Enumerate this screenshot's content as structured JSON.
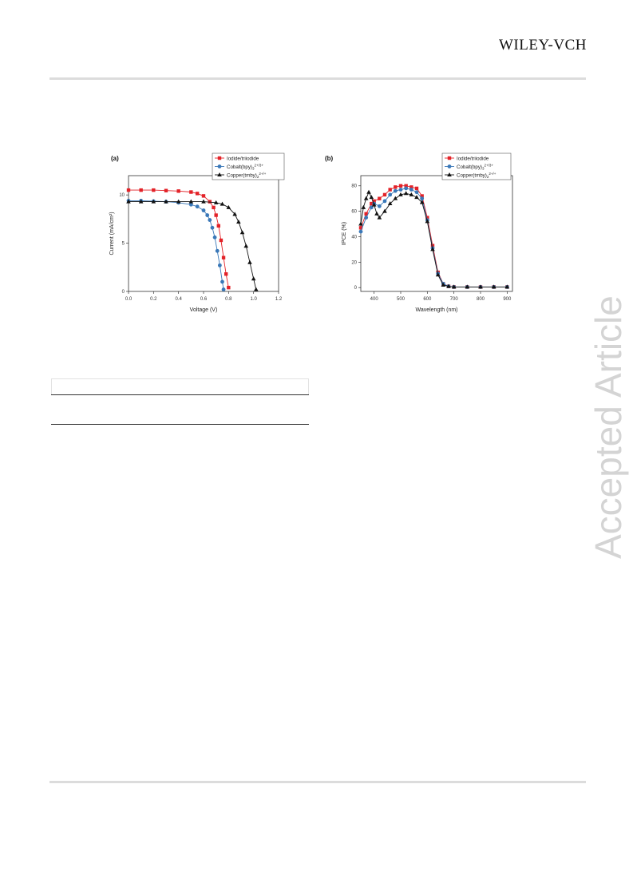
{
  "header": {
    "publisher": "WILEY-VCH"
  },
  "watermark": "Accepted Article",
  "chart_data": [
    {
      "type": "line",
      "panel_label": "(a)",
      "xlabel": "Voltage (V)",
      "ylabel": "Current (mA/cm²)",
      "xlim": [
        0,
        1.2
      ],
      "ylim": [
        0,
        12
      ],
      "xticks": [
        "0.0",
        "0.2",
        "0.4",
        "0.6",
        "0.8",
        "1.0",
        "1.2"
      ],
      "yticks": [
        "0",
        "5",
        "10"
      ],
      "legend_position": "top-right",
      "series": [
        {
          "name": "Iodide/triiodide",
          "color": "#e32228",
          "marker": "square",
          "x": [
            0,
            0.1,
            0.2,
            0.3,
            0.4,
            0.5,
            0.55,
            0.6,
            0.65,
            0.68,
            0.7,
            0.72,
            0.74,
            0.76,
            0.78,
            0.8
          ],
          "y": [
            10.5,
            10.5,
            10.5,
            10.45,
            10.4,
            10.3,
            10.15,
            9.9,
            9.3,
            8.7,
            7.9,
            6.8,
            5.3,
            3.5,
            1.8,
            0.4
          ]
        },
        {
          "name": "Cobalt(bpy)3 2+/3+",
          "color": "#3a78b8",
          "marker": "circle",
          "x": [
            0,
            0.1,
            0.2,
            0.3,
            0.4,
            0.5,
            0.55,
            0.6,
            0.63,
            0.65,
            0.67,
            0.69,
            0.71,
            0.73,
            0.75,
            0.76
          ],
          "y": [
            9.4,
            9.4,
            9.35,
            9.3,
            9.2,
            9.0,
            8.8,
            8.4,
            7.9,
            7.4,
            6.6,
            5.6,
            4.2,
            2.7,
            1.0,
            0.2
          ]
        },
        {
          "name": "Copper(tmby)2 2+/+",
          "color": "#111111",
          "marker": "triangle",
          "x": [
            0,
            0.1,
            0.2,
            0.3,
            0.4,
            0.5,
            0.6,
            0.7,
            0.75,
            0.8,
            0.85,
            0.88,
            0.91,
            0.94,
            0.97,
            1.0,
            1.02
          ],
          "y": [
            9.3,
            9.3,
            9.3,
            9.3,
            9.3,
            9.3,
            9.3,
            9.2,
            9.05,
            8.7,
            8.0,
            7.2,
            6.1,
            4.7,
            3.0,
            1.3,
            0.2
          ]
        }
      ],
      "legend_labels": [
        {
          "base": "Iodide/triiodide",
          "sub": "",
          "sup": ""
        },
        {
          "base": "Cobalt(bpy)",
          "sub": "3",
          "sup": "2+/3+"
        },
        {
          "base": "Copper(tmby)",
          "sub": "2",
          "sup": "2+/+"
        }
      ]
    },
    {
      "type": "line",
      "panel_label": "(b)",
      "xlabel": "Wavelength (nm)",
      "ylabel": "IPCE (%)",
      "xlim": [
        350,
        920
      ],
      "ylim": [
        -3,
        88
      ],
      "xticks": [
        "400",
        "500",
        "600",
        "700",
        "800",
        "900"
      ],
      "yticks": [
        "0",
        "20",
        "40",
        "60",
        "80"
      ],
      "legend_position": "top-right",
      "series": [
        {
          "name": "Iodide/triiodide",
          "color": "#e32228",
          "marker": "square",
          "x": [
            350,
            370,
            390,
            400,
            420,
            440,
            460,
            480,
            500,
            520,
            540,
            560,
            580,
            600,
            620,
            640,
            660,
            680,
            700,
            750,
            800,
            850,
            900
          ],
          "y": [
            47,
            58,
            66,
            68,
            70,
            73,
            77,
            79,
            80,
            80,
            79,
            78,
            72,
            55,
            33,
            12,
            3,
            1,
            0.5,
            0.5,
            0.5,
            0.5,
            0.5
          ]
        },
        {
          "name": "Cobalt(bpy)3 2+/3+",
          "color": "#3a78b8",
          "marker": "circle",
          "x": [
            350,
            370,
            390,
            400,
            420,
            440,
            460,
            480,
            500,
            520,
            540,
            560,
            580,
            600,
            620,
            640,
            660,
            680,
            700,
            750,
            800,
            850,
            900
          ],
          "y": [
            44,
            55,
            63,
            66,
            64,
            68,
            73,
            76,
            77,
            78,
            77,
            75,
            70,
            53,
            31,
            11,
            3,
            1,
            0.5,
            0.5,
            0.5,
            0.5,
            0.5
          ]
        },
        {
          "name": "Copper(tmby)2 2+/+",
          "color": "#111111",
          "marker": "triangle",
          "x": [
            350,
            360,
            370,
            380,
            390,
            400,
            410,
            420,
            440,
            460,
            480,
            500,
            520,
            540,
            560,
            580,
            600,
            620,
            640,
            660,
            680,
            700,
            750,
            800,
            850,
            900
          ],
          "y": [
            50,
            63,
            70,
            75,
            71,
            65,
            58,
            55,
            60,
            66,
            70,
            73,
            74,
            73,
            71,
            67,
            52,
            30,
            10,
            2,
            1,
            0.5,
            0.5,
            0.5,
            0.5,
            0.5
          ]
        }
      ],
      "legend_labels": [
        {
          "base": "Iodide/triiodide",
          "sub": "",
          "sup": ""
        },
        {
          "base": "Cobalt(bpy)",
          "sub": "3",
          "sup": "2+/3+"
        },
        {
          "base": "Copper(tmby)",
          "sub": "2",
          "sup": "2+/+"
        }
      ]
    }
  ]
}
